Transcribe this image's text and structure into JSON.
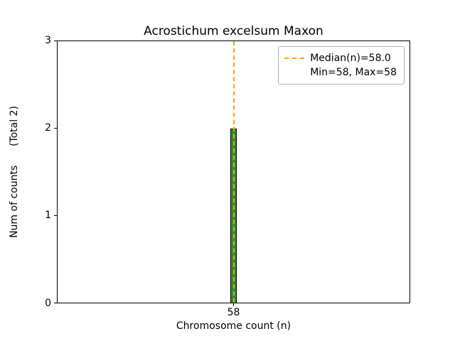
{
  "chart_data": {
    "type": "bar",
    "title": "Acrostichum excelsum Maxon",
    "xlabel": "Chromosome count (n)",
    "ylabel": "Num of counts (Total 2)",
    "ylabel_display": "Num of counts      (Total 2)",
    "categories": [
      "58"
    ],
    "values": [
      2
    ],
    "total_counts": 2,
    "ylim": [
      0,
      3
    ],
    "yticks": [
      0,
      1,
      2,
      3
    ],
    "xticks": [
      "58"
    ],
    "bar_color": "#2e8b3d",
    "bar_edge_color": "#000000",
    "grid": false,
    "median_line": {
      "x": 58,
      "value": 58.0,
      "color": "#ffa500",
      "style": "dashed",
      "orientation": "vertical"
    },
    "stats": {
      "median": 58.0,
      "min": 58,
      "max": 58
    },
    "legend": {
      "position": "upper right",
      "entries": [
        "Median(n)=58.0",
        "Min=58, Max=58"
      ]
    }
  }
}
